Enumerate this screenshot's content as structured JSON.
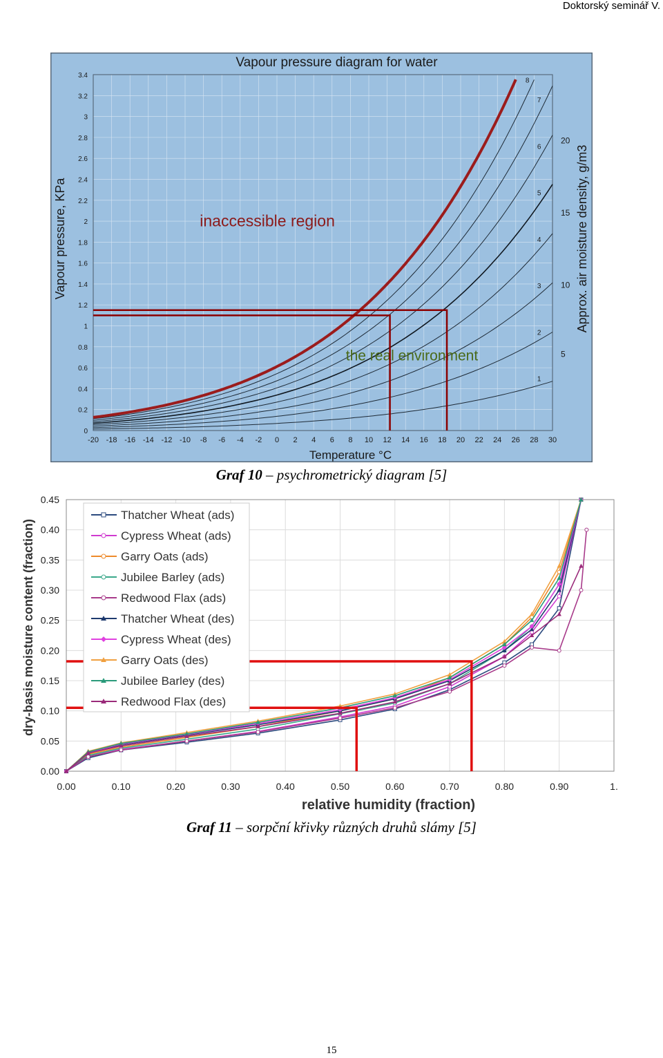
{
  "page": {
    "header": "Doktorský seminář V.",
    "page_number": "15"
  },
  "captions": {
    "graf10_number": "Graf 10",
    "graf10_text": " – psychrometrický diagram [5]",
    "graf11_number": "Graf 11",
    "graf11_text": " – sorpční křivky různých druhů slámy [5]"
  },
  "chart_data": [
    {
      "type": "line",
      "title": "Vapour pressure diagram for water",
      "xlabel": "Temperature °C",
      "ylabel": "Vapour pressure, KPa",
      "y2label": "Approx. air moisture density, g/m3",
      "xlim": [
        -20,
        30
      ],
      "ylim": [
        0,
        3.4
      ],
      "x_ticks": [
        -20,
        -18,
        -16,
        -14,
        -12,
        -10,
        -8,
        -6,
        -4,
        -2,
        0,
        2,
        4,
        6,
        8,
        10,
        12,
        14,
        16,
        18,
        20,
        22,
        24,
        26,
        28,
        30
      ],
      "y_ticks": [
        0,
        0.2,
        0.4,
        0.6,
        0.8,
        1,
        1.2,
        1.4,
        1.6,
        1.8,
        2,
        2.2,
        2.4,
        2.6,
        2.8,
        3,
        3.2,
        3.4
      ],
      "y_tick_labels": [
        "0",
        "0.2",
        "0.4",
        "0.6",
        "0.8",
        "1",
        "1.2",
        "1.4",
        "1.6",
        "1.8",
        "2",
        "2.2",
        "2.4",
        "2.6",
        "2.8",
        "3",
        "3.2",
        "3.4"
      ],
      "y2_ticks": [
        {
          "label": "5",
          "y": 0.73
        },
        {
          "label": "10",
          "y": 1.39
        },
        {
          "label": "15",
          "y": 2.08
        },
        {
          "label": "20",
          "y": 2.77
        }
      ],
      "curve_labels": [
        "1",
        "2",
        "3",
        "4",
        "5",
        "6",
        "7",
        "8"
      ],
      "curve_label_values": [
        1,
        2,
        3,
        4,
        5,
        6,
        7,
        8
      ],
      "background": "#9cc0e0",
      "grid": true,
      "saturation_color": "#9b1c1c",
      "annotations": [
        {
          "text": "inaccessible region",
          "x": -8.4,
          "y": 1.95,
          "color": "#8b1a1a"
        },
        {
          "text": "the real environment",
          "x": 7.5,
          "y": 0.67,
          "color": "#4a6a1a"
        }
      ],
      "markers": [
        {
          "x": 12.3,
          "y": 1.1,
          "color": "#8b0000"
        },
        {
          "x": 18.5,
          "y": 1.15,
          "color": "#8b0000"
        }
      ]
    },
    {
      "type": "line",
      "xlabel": "relative humidity (fraction)",
      "ylabel": "dry-basis moisture content (fraction)",
      "xlim": [
        0,
        1
      ],
      "ylim": [
        0,
        0.45
      ],
      "x_ticks": [
        0,
        0.1,
        0.2,
        0.3,
        0.4,
        0.5,
        0.6,
        0.7,
        0.8,
        0.9,
        1
      ],
      "x_tick_labels": [
        "0.00",
        "0.10",
        "0.20",
        "0.30",
        "0.40",
        "0.50",
        "0.60",
        "0.70",
        "0.80",
        "0.90",
        "1."
      ],
      "y_ticks": [
        0,
        0.05,
        0.1,
        0.15,
        0.2,
        0.25,
        0.3,
        0.35,
        0.4,
        0.45
      ],
      "y_tick_labels": [
        "0.00",
        "0.05",
        "0.10",
        "0.15",
        "0.20",
        "0.25",
        "0.30",
        "0.35",
        "0.40",
        "0.45"
      ],
      "grid": true,
      "legend_position": "top-left",
      "series": [
        {
          "name": "Thatcher Wheat (ads)",
          "color": "#2b4a7e",
          "marker": "square",
          "x": [
            0,
            0.04,
            0.1,
            0.22,
            0.35,
            0.5,
            0.6,
            0.7,
            0.8,
            0.85,
            0.9,
            0.94
          ],
          "y": [
            0,
            0.022,
            0.035,
            0.048,
            0.063,
            0.085,
            0.103,
            0.135,
            0.18,
            0.21,
            0.27,
            0.45
          ]
        },
        {
          "name": "Cypress Wheat (ads)",
          "color": "#d03ad0",
          "marker": "circle",
          "x": [
            0,
            0.04,
            0.1,
            0.22,
            0.35,
            0.5,
            0.6,
            0.7,
            0.8,
            0.85,
            0.9,
            0.94
          ],
          "y": [
            0,
            0.024,
            0.036,
            0.05,
            0.066,
            0.09,
            0.108,
            0.14,
            0.19,
            0.23,
            0.29,
            0.45
          ]
        },
        {
          "name": "Garry Oats (ads)",
          "color": "#ee8a2a",
          "marker": "circle",
          "x": [
            0,
            0.04,
            0.1,
            0.22,
            0.35,
            0.5,
            0.6,
            0.7,
            0.8,
            0.85,
            0.9,
            0.94
          ],
          "y": [
            0,
            0.028,
            0.04,
            0.056,
            0.074,
            0.1,
            0.12,
            0.155,
            0.21,
            0.255,
            0.33,
            0.45
          ]
        },
        {
          "name": "Jubilee Barley (ads)",
          "color": "#3aa88a",
          "marker": "circle",
          "x": [
            0,
            0.04,
            0.1,
            0.22,
            0.35,
            0.5,
            0.6,
            0.7,
            0.8,
            0.85,
            0.9,
            0.94
          ],
          "y": [
            0,
            0.026,
            0.038,
            0.053,
            0.07,
            0.095,
            0.113,
            0.145,
            0.2,
            0.24,
            0.31,
            0.45
          ]
        },
        {
          "name": "Redwood Flax (ads)",
          "color": "#a83a8a",
          "marker": "circle",
          "x": [
            0,
            0.04,
            0.1,
            0.22,
            0.35,
            0.5,
            0.6,
            0.7,
            0.8,
            0.85,
            0.9,
            0.94,
            0.95
          ],
          "y": [
            0,
            0.024,
            0.035,
            0.05,
            0.065,
            0.088,
            0.105,
            0.132,
            0.175,
            0.205,
            0.2,
            0.3,
            0.4
          ]
        },
        {
          "name": "Thatcher Wheat (des)",
          "color": "#1e3a6e",
          "marker": "triangle",
          "x": [
            0,
            0.04,
            0.1,
            0.22,
            0.35,
            0.5,
            0.6,
            0.7,
            0.8,
            0.85,
            0.9,
            0.94
          ],
          "y": [
            0,
            0.03,
            0.044,
            0.06,
            0.077,
            0.1,
            0.12,
            0.15,
            0.2,
            0.235,
            0.3,
            0.45
          ]
        },
        {
          "name": "Cypress Wheat (des)",
          "color": "#e040e0",
          "marker": "diamond",
          "x": [
            0,
            0.04,
            0.1,
            0.22,
            0.35,
            0.5,
            0.6,
            0.7,
            0.8,
            0.85,
            0.9,
            0.94
          ],
          "y": [
            0,
            0.031,
            0.045,
            0.061,
            0.079,
            0.102,
            0.122,
            0.152,
            0.205,
            0.24,
            0.31,
            0.45
          ]
        },
        {
          "name": "Garry Oats (des)",
          "color": "#f0a040",
          "marker": "triangle",
          "x": [
            0,
            0.04,
            0.1,
            0.22,
            0.35,
            0.5,
            0.6,
            0.7,
            0.8,
            0.85,
            0.9,
            0.94
          ],
          "y": [
            0,
            0.033,
            0.047,
            0.064,
            0.083,
            0.108,
            0.128,
            0.16,
            0.215,
            0.26,
            0.34,
            0.45
          ]
        },
        {
          "name": "Jubilee Barley (des)",
          "color": "#2a9a7a",
          "marker": "triangle",
          "x": [
            0,
            0.04,
            0.1,
            0.22,
            0.35,
            0.5,
            0.6,
            0.7,
            0.8,
            0.85,
            0.9,
            0.94
          ],
          "y": [
            0,
            0.032,
            0.046,
            0.062,
            0.081,
            0.105,
            0.125,
            0.155,
            0.21,
            0.25,
            0.32,
            0.45
          ]
        },
        {
          "name": "Redwood Flax (des)",
          "color": "#9a2a7a",
          "marker": "triangle",
          "x": [
            0,
            0.04,
            0.1,
            0.22,
            0.35,
            0.5,
            0.6,
            0.7,
            0.8,
            0.85,
            0.9,
            0.94
          ],
          "y": [
            0,
            0.03,
            0.042,
            0.058,
            0.074,
            0.096,
            0.115,
            0.145,
            0.19,
            0.225,
            0.26,
            0.34
          ]
        }
      ],
      "markers": [
        {
          "x": 0.53,
          "y": 0.105,
          "color": "#e01010"
        },
        {
          "x": 0.74,
          "y": 0.182,
          "color": "#e01010"
        }
      ]
    }
  ]
}
